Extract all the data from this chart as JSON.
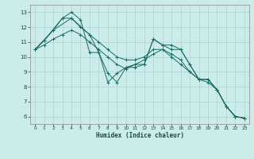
{
  "xlabel": "Humidex (Indice chaleur)",
  "background_color": "#ccecea",
  "grid_color": "#aad4d2",
  "line_color": "#1a6b62",
  "xlim": [
    -0.5,
    23.5
  ],
  "ylim": [
    5.5,
    13.5
  ],
  "yticks": [
    6,
    7,
    8,
    9,
    10,
    11,
    12,
    13
  ],
  "xticks": [
    0,
    1,
    2,
    3,
    4,
    5,
    6,
    7,
    8,
    9,
    10,
    11,
    12,
    13,
    14,
    15,
    16,
    17,
    18,
    19,
    20,
    21,
    22,
    23
  ],
  "series": [
    {
      "x": [
        0,
        1,
        3,
        4,
        5,
        6,
        7,
        8,
        9,
        10,
        11,
        12,
        13,
        14,
        15,
        16,
        17,
        18,
        19,
        20,
        21,
        22,
        23
      ],
      "y": [
        10.5,
        11.1,
        12.6,
        13.0,
        12.5,
        10.3,
        10.3,
        8.9,
        8.3,
        9.3,
        9.3,
        9.5,
        11.2,
        10.8,
        10.8,
        10.5,
        9.5,
        8.5,
        8.5,
        7.8,
        6.7,
        6.0,
        5.9
      ]
    },
    {
      "x": [
        0,
        1,
        2,
        3,
        4,
        5,
        6,
        7,
        8,
        9,
        10,
        11,
        12,
        13,
        14,
        15,
        16,
        17,
        18,
        19,
        20,
        21,
        22,
        23
      ],
      "y": [
        10.5,
        11.1,
        11.8,
        12.6,
        12.6,
        12.0,
        11.5,
        11.0,
        10.5,
        10.0,
        9.8,
        9.8,
        10.0,
        10.5,
        10.5,
        10.2,
        9.8,
        9.0,
        8.5,
        8.5,
        7.8,
        6.7,
        6.0,
        5.9
      ]
    },
    {
      "x": [
        0,
        1,
        2,
        3,
        4,
        5,
        6,
        7,
        8,
        9,
        10,
        11,
        12,
        13,
        14,
        15,
        16,
        17,
        18,
        19,
        20,
        21,
        22,
        23
      ],
      "y": [
        10.5,
        10.8,
        11.2,
        11.5,
        11.8,
        11.5,
        11.0,
        10.5,
        10.0,
        9.5,
        9.2,
        9.5,
        9.8,
        10.2,
        10.5,
        10.0,
        9.5,
        9.0,
        8.5,
        8.3,
        7.8,
        6.7,
        6.0,
        5.9
      ]
    },
    {
      "comment": "zigzag line: up to x=2 (11.8), x=4 (12.6), down to x=7(10.3), x=8(8.3), up x=9(8.9), x=10(9.3), then down",
      "x": [
        0,
        2,
        4,
        6,
        7,
        8,
        9,
        10,
        11,
        12,
        13,
        14,
        15,
        16,
        17,
        18,
        19,
        20,
        21,
        22,
        23
      ],
      "y": [
        10.5,
        11.8,
        12.6,
        11.5,
        10.3,
        8.3,
        8.9,
        9.3,
        9.5,
        9.5,
        11.2,
        10.8,
        10.5,
        10.5,
        9.5,
        8.5,
        8.5,
        7.8,
        6.7,
        6.0,
        5.9
      ]
    }
  ]
}
